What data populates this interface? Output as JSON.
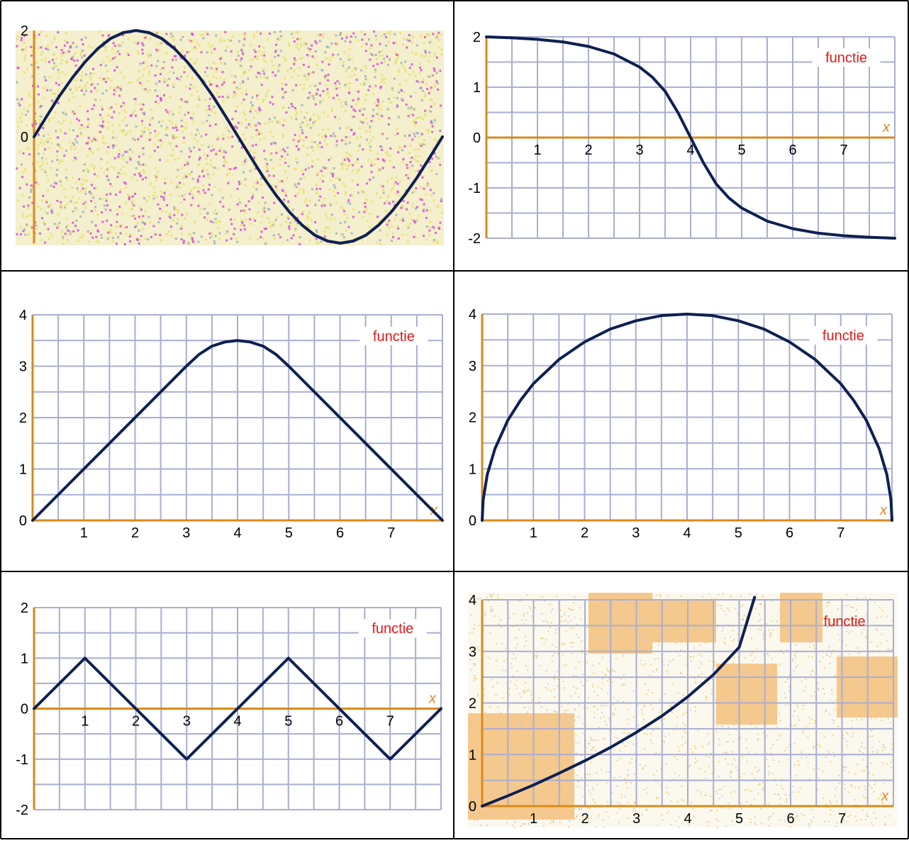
{
  "colors": {
    "grid": "#a9aed2",
    "axis": "#d98a1c",
    "curve": "#0e1f52",
    "label": "#e3191b",
    "text": "#000000",
    "xlabel": "#e08a1a",
    "border": "#000000",
    "noise_a": "#e9e070",
    "noise_b": "#d34fd6",
    "stain": "#f0a040"
  },
  "chart_data": [
    {
      "type": "line",
      "title": "",
      "legend": "",
      "xlabel": "",
      "ylabel": "",
      "x": [
        0,
        0.25,
        0.5,
        0.75,
        1,
        1.25,
        1.5,
        1.75,
        2,
        2.25,
        2.5,
        2.75,
        3,
        3.25,
        3.5,
        3.75,
        4,
        4.25,
        4.5,
        4.75,
        5,
        5.25,
        5.5,
        5.75,
        6,
        6.25,
        6.5,
        6.75,
        7,
        7.25,
        7.5,
        7.75,
        8
      ],
      "y": [
        0,
        0.39,
        0.77,
        1.11,
        1.41,
        1.66,
        1.85,
        1.96,
        2,
        1.96,
        1.85,
        1.66,
        1.41,
        1.11,
        0.77,
        0.39,
        0,
        -0.39,
        -0.77,
        -1.11,
        -1.41,
        -1.66,
        -1.85,
        -1.96,
        -2,
        -1.96,
        -1.85,
        -1.66,
        -1.41,
        -1.11,
        -0.77,
        -0.39,
        0
      ],
      "xlim": [
        0,
        8
      ],
      "ylim": [
        -2,
        2
      ],
      "x_ticks": [],
      "y_ticks": [
        "2",
        "0"
      ],
      "grid": false,
      "noisy": true
    },
    {
      "type": "line",
      "title": "",
      "legend": "functie",
      "xlabel": "x",
      "ylabel": "",
      "x": [
        0,
        0.5,
        1,
        1.5,
        2,
        2.5,
        3,
        3.25,
        3.5,
        3.75,
        4,
        4.25,
        4.5,
        4.75,
        5,
        5.5,
        6,
        6.5,
        7,
        7.5,
        8
      ],
      "y": [
        2,
        1.98,
        1.95,
        1.9,
        1.81,
        1.66,
        1.4,
        1.2,
        0.92,
        0.5,
        0,
        -0.5,
        -0.92,
        -1.2,
        -1.4,
        -1.66,
        -1.81,
        -1.9,
        -1.95,
        -1.98,
        -2
      ],
      "xlim": [
        0,
        8
      ],
      "ylim": [
        -2,
        2
      ],
      "x_ticks": [
        "1",
        "2",
        "3",
        "4",
        "5",
        "6",
        "7"
      ],
      "y_ticks": [
        "2",
        "1",
        "0",
        "-1",
        "-2"
      ],
      "grid": true
    },
    {
      "type": "line",
      "title": "",
      "legend": "functie",
      "xlabel": "x",
      "ylabel": "",
      "x": [
        0,
        3,
        3.25,
        3.5,
        3.75,
        4,
        4.25,
        4.5,
        4.75,
        5,
        8
      ],
      "y": [
        0,
        3,
        3.23,
        3.39,
        3.47,
        3.5,
        3.47,
        3.39,
        3.23,
        3,
        0
      ],
      "xlim": [
        0,
        8
      ],
      "ylim": [
        0,
        4
      ],
      "x_ticks": [
        "1",
        "2",
        "3",
        "4",
        "5",
        "6",
        "7"
      ],
      "y_ticks": [
        "4",
        "3",
        "2",
        "1",
        "0"
      ],
      "grid": true
    },
    {
      "type": "line",
      "title": "",
      "legend": "functie",
      "xlabel": "x",
      "ylabel": "",
      "x": [
        0,
        0.02,
        0.1,
        0.25,
        0.5,
        0.75,
        1,
        1.5,
        2,
        2.5,
        3,
        3.5,
        4,
        4.5,
        5,
        5.5,
        6,
        6.5,
        7,
        7.25,
        7.5,
        7.75,
        7.9,
        7.98,
        8
      ],
      "y": [
        0,
        0.4,
        0.89,
        1.39,
        1.94,
        2.33,
        2.65,
        3.12,
        3.46,
        3.71,
        3.87,
        3.97,
        4,
        3.97,
        3.87,
        3.71,
        3.46,
        3.12,
        2.65,
        2.33,
        1.94,
        1.39,
        0.89,
        0.4,
        0
      ],
      "xlim": [
        0,
        8
      ],
      "ylim": [
        0,
        4
      ],
      "x_ticks": [
        "1",
        "2",
        "3",
        "4",
        "5",
        "6",
        "7"
      ],
      "y_ticks": [
        "4",
        "3",
        "2",
        "1",
        "0"
      ],
      "grid": true
    },
    {
      "type": "line",
      "title": "",
      "legend": "functie",
      "xlabel": "x",
      "ylabel": "",
      "x": [
        0,
        1,
        2,
        3,
        4,
        5,
        6,
        7,
        8
      ],
      "y": [
        0,
        1,
        0,
        -1,
        0,
        1,
        0,
        -1,
        0
      ],
      "xlim": [
        0,
        8
      ],
      "ylim": [
        -2,
        2
      ],
      "x_ticks": [
        "1",
        "2",
        "3",
        "4",
        "5",
        "6",
        "7"
      ],
      "y_ticks": [
        "2",
        "1",
        "0",
        "-1",
        "-2"
      ],
      "grid": true
    },
    {
      "type": "line",
      "title": "",
      "legend": "functie",
      "xlabel": "x",
      "ylabel": "",
      "x": [
        0,
        0.5,
        1,
        1.5,
        2,
        2.5,
        3,
        3.5,
        4,
        4.5,
        5,
        5.3
      ],
      "y": [
        0,
        0.2,
        0.41,
        0.64,
        0.88,
        1.14,
        1.43,
        1.75,
        2.12,
        2.55,
        3.08,
        4.05
      ],
      "xlim": [
        0,
        8
      ],
      "ylim": [
        0,
        4
      ],
      "x_ticks": [
        "1",
        "2",
        "3",
        "4",
        "5",
        "6",
        "7"
      ],
      "y_ticks": [
        "4",
        "3",
        "2",
        "1",
        "0"
      ],
      "grid": true,
      "noisy": true
    }
  ]
}
